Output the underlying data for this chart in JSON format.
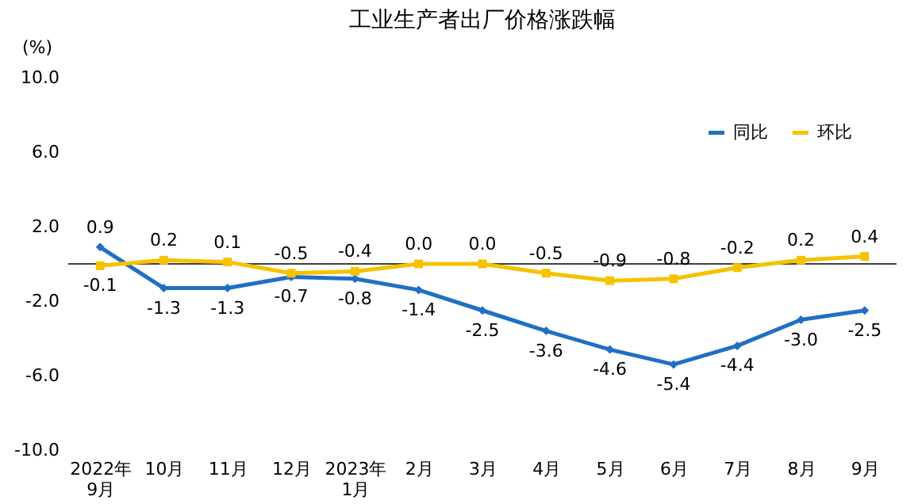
{
  "chart_data": {
    "type": "line",
    "title": "工业生产者出厂价格涨跌幅",
    "ylabel": "(%)",
    "categories": [
      "2022年\n9月",
      "10月",
      "11月",
      "12月",
      "2023年\n1月",
      "2月",
      "3月",
      "4月",
      "5月",
      "6月",
      "7月",
      "8月",
      "9月"
    ],
    "series": [
      {
        "name": "同比",
        "color": "#1f6fc5",
        "marker": "diamond",
        "values": [
          0.9,
          -1.3,
          -1.3,
          -0.7,
          -0.8,
          -1.4,
          -2.5,
          -3.6,
          -4.6,
          -5.4,
          -4.4,
          -3.0,
          -2.5
        ],
        "value_labels": [
          "0.9",
          "-1.3",
          "-1.3",
          "-0.7",
          "-0.8",
          "-1.4",
          "-2.5",
          "-3.6",
          "-4.6",
          "-5.4",
          "-4.4",
          "-3.0",
          "-2.5"
        ]
      },
      {
        "name": "环比",
        "color": "#f5c200",
        "marker": "square",
        "values": [
          -0.1,
          0.2,
          0.1,
          -0.5,
          -0.4,
          0.0,
          0.0,
          -0.5,
          -0.9,
          -0.8,
          -0.2,
          0.2,
          0.4
        ],
        "value_labels": [
          "-0.1",
          "0.2",
          "0.1",
          "-0.5",
          "-0.4",
          "0.0",
          "0.0",
          "-0.5",
          "-0.9",
          "-0.8",
          "-0.2",
          "0.2",
          "0.4"
        ]
      }
    ],
    "ylim": [
      -10,
      10
    ],
    "yticks": [
      {
        "value": -10,
        "label": "-10.0"
      },
      {
        "value": -6,
        "label": "-6.0"
      },
      {
        "value": -2,
        "label": "-2.0"
      },
      {
        "value": 2,
        "label": "2.0"
      },
      {
        "value": 6,
        "label": "6.0"
      },
      {
        "value": 10,
        "label": "10.0"
      }
    ],
    "ref_lines": [
      {
        "axis": "y",
        "value": 0,
        "color": "#404040"
      }
    ],
    "grid": false,
    "legend": "top right",
    "line_style": "solid"
  }
}
